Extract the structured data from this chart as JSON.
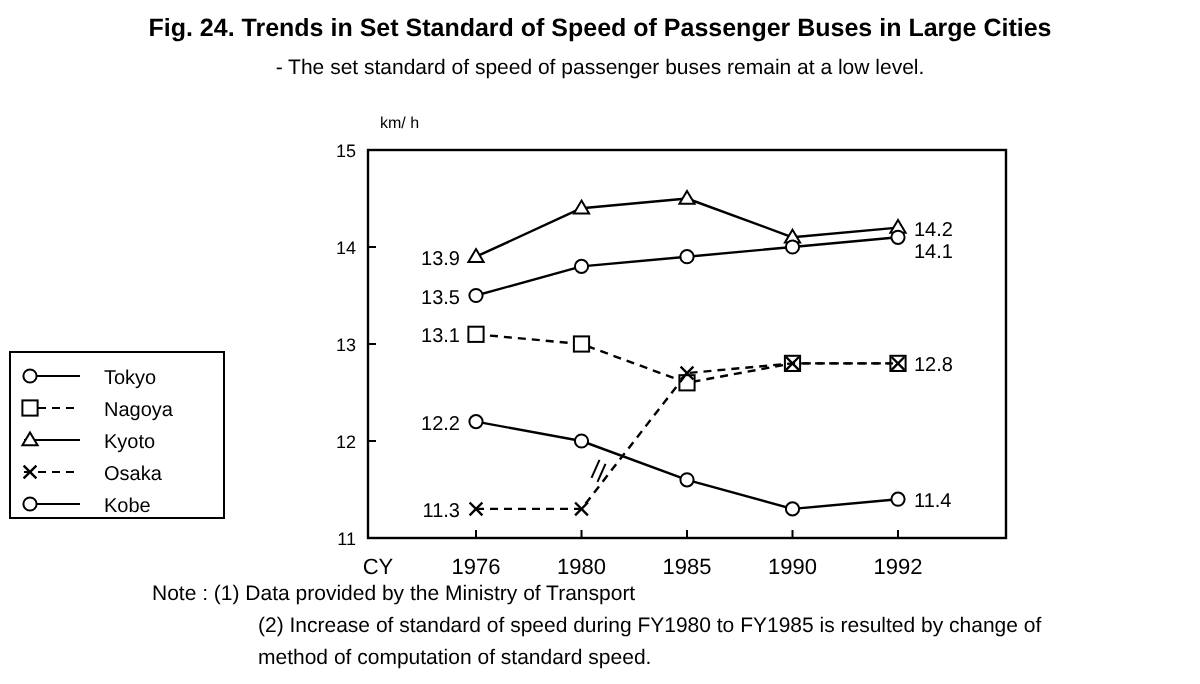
{
  "chart_data": {
    "type": "line",
    "title": "Fig. 24. Trends in Set Standard of Speed of Passenger Buses in Large Cities",
    "subtitle": "- The set standard of speed of passenger buses remain at a low level.",
    "ylabel": "km/ h",
    "xlabel": "CY",
    "categories": [
      "1976",
      "1980",
      "1985",
      "1990",
      "1992"
    ],
    "series": [
      {
        "name": "Tokyo",
        "color": "#000000",
        "marker": "circle",
        "line_style": "solid",
        "values": [
          12.2,
          12.0,
          11.6,
          11.3,
          11.4
        ],
        "value_labels": [
          "12.2",
          null,
          null,
          null,
          "11.4"
        ]
      },
      {
        "name": "Nagoya",
        "color": "#000000",
        "marker": "square",
        "line_style": "dashed",
        "values": [
          13.1,
          13.0,
          12.6,
          12.8,
          12.8
        ],
        "value_labels": [
          "13.1",
          null,
          null,
          null,
          null
        ]
      },
      {
        "name": "Kyoto",
        "color": "#000000",
        "marker": "triangle",
        "line_style": "solid",
        "values": [
          13.9,
          14.4,
          14.5,
          14.1,
          14.2
        ],
        "value_labels": [
          "13.9",
          null,
          null,
          null,
          "14.2"
        ]
      },
      {
        "name": "Osaka",
        "color": "#000000",
        "marker": "cross",
        "line_style": "dashed",
        "values": [
          11.3,
          11.3,
          12.7,
          12.8,
          12.8
        ],
        "value_labels": [
          "11.3",
          null,
          null,
          null,
          "12.8"
        ]
      },
      {
        "name": "Kobe",
        "color": "#000000",
        "marker": "circle",
        "line_style": "solid",
        "values": [
          13.5,
          13.8,
          13.9,
          14.0,
          14.1
        ],
        "value_labels": [
          "13.5",
          null,
          null,
          null,
          "14.1"
        ]
      }
    ],
    "ylim": [
      11,
      15
    ],
    "yticks": [
      11,
      12,
      13,
      14,
      15
    ],
    "grid": false,
    "legend": "left",
    "annotations": [
      "Note : (1) Data provided by the Ministry of Transport",
      "(2) Increase of standard of speed during FY1980 to FY1985 is resulted by change of",
      "method of computation of standard speed."
    ]
  }
}
